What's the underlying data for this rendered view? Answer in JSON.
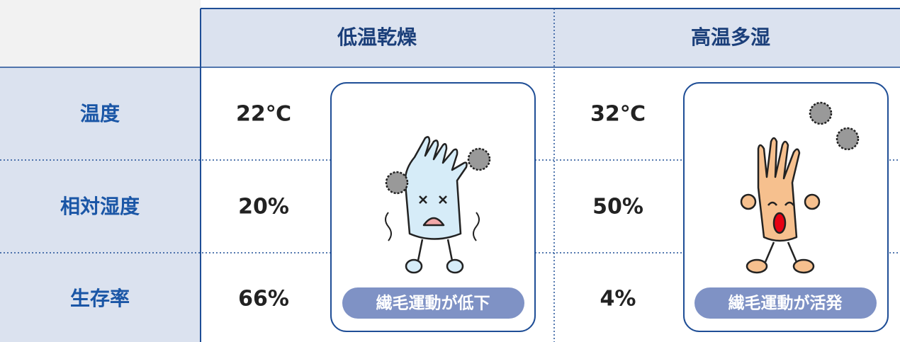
{
  "table": {
    "columns": [
      "低温乾燥",
      "高温多湿"
    ],
    "rows": [
      {
        "label": "温度",
        "values": [
          "22℃",
          "32℃"
        ]
      },
      {
        "label": "相対湿度",
        "values": [
          "20%",
          "50%"
        ]
      },
      {
        "label": "生存率",
        "values": [
          "66%",
          "4%"
        ]
      }
    ],
    "badges": [
      "繊毛運動が低下",
      "繊毛運動が活発"
    ]
  }
}
